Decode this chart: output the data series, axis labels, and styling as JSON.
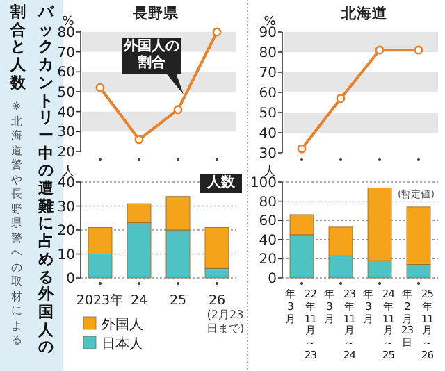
{
  "chart_data": [
    {
      "type": "other",
      "title": "バックカントリー中の遭難に占める外国人の割合と人数",
      "annotations": [
        "※北海道警や長野県警への取材による"
      ]
    },
    {
      "type": "line",
      "title": "長野県",
      "ylabel": "%",
      "categories": [
        null,
        null,
        null,
        null
      ],
      "series": [
        {
          "color": "#e8812c",
          "values": [
            52,
            26,
            41,
            80
          ]
        }
      ],
      "ylim": [
        20,
        80
      ],
      "yticks": [
        20,
        30,
        40,
        50,
        60,
        70,
        80
      ],
      "bands": [
        {
          "axis": "y",
          "from": 70,
          "to": 80,
          "color": "#e6e6e6"
        },
        {
          "axis": "y",
          "from": 50,
          "to": 60,
          "color": "#e6e6e6"
        },
        {
          "axis": "y",
          "from": 30,
          "to": 40,
          "color": "#e6e6e6"
        }
      ],
      "marker": "circle",
      "tick_labels": "y",
      "annotations": [
        "外国人の割合"
      ]
    },
    {
      "type": "bar",
      "stacked": true,
      "ylabel": "人",
      "categories": [
        "2023年",
        "24",
        "25",
        "26"
      ],
      "series": [
        {
          "name": "日本人",
          "color": "#4fc3c3",
          "values": [
            10,
            23,
            20,
            4
          ]
        },
        {
          "name": "外国人",
          "color": "#f5a31a",
          "values": [
            11,
            8,
            14,
            17
          ]
        }
      ],
      "ylim": [
        0,
        40
      ],
      "yticks": [
        0,
        10,
        20,
        30,
        40
      ],
      "grid": "y",
      "legend": "bottom",
      "annotations": [
        "人数",
        "(2月23日まで)"
      ]
    },
    {
      "type": "line",
      "title": "北海道",
      "ylabel": "%",
      "categories": [
        null,
        null,
        null,
        null
      ],
      "series": [
        {
          "color": "#e8812c",
          "values": [
            32,
            57,
            81,
            81
          ]
        }
      ],
      "ylim": [
        30,
        90
      ],
      "yticks": [
        30,
        40,
        50,
        60,
        70,
        80,
        90
      ],
      "bands": [
        {
          "axis": "y",
          "from": 80,
          "to": 90,
          "color": "#e6e6e6"
        },
        {
          "axis": "y",
          "from": 60,
          "to": 70,
          "color": "#e6e6e6"
        },
        {
          "axis": "y",
          "from": 40,
          "to": 50,
          "color": "#e6e6e6"
        }
      ],
      "marker": "circle",
      "tick_labels": "y"
    },
    {
      "type": "bar",
      "stacked": true,
      "ylabel": "人",
      "categories": [
        "22年11月～23年3月",
        "23年11月～24年3月",
        "24年11月～25年3月",
        "25年11月～26年2月23日"
      ],
      "series": [
        {
          "color": "#4fc3c3",
          "values": [
            45,
            23,
            18,
            14
          ]
        },
        {
          "color": "#f5a31a",
          "values": [
            21,
            30,
            76,
            60
          ]
        }
      ],
      "ylim": [
        0,
        100
      ],
      "yticks": [
        0,
        20,
        40,
        60,
        80,
        100
      ],
      "grid": "y",
      "annotations": [
        "(暫定値)"
      ]
    }
  ]
}
